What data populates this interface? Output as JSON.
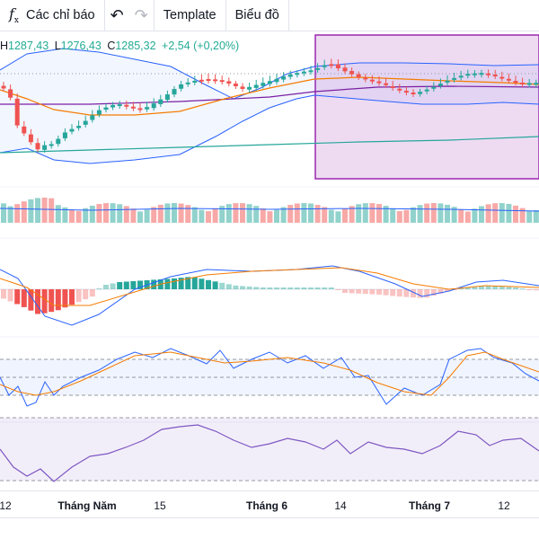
{
  "toolbar": {
    "indicators_label": "Các chỉ báo",
    "template_label": "Template",
    "chart_type_label": "Biểu đồ"
  },
  "legend": {
    "high_label": "H",
    "high_value": "1287,43",
    "low_label": "L",
    "low_value": "1276,43",
    "close_label": "C",
    "close_value": "1285,32",
    "change": "+2,54 (+0,20%)"
  },
  "time_axis": {
    "labels": [
      "12",
      "Tháng Năm",
      "15",
      "Tháng 6",
      "14",
      "Tháng 7",
      "12"
    ]
  },
  "colors": {
    "up": "#26a69a",
    "down": "#ef5350",
    "bollinger": "#2962ff",
    "ma": "#f57c00",
    "selection": "#9c27b0"
  }
}
